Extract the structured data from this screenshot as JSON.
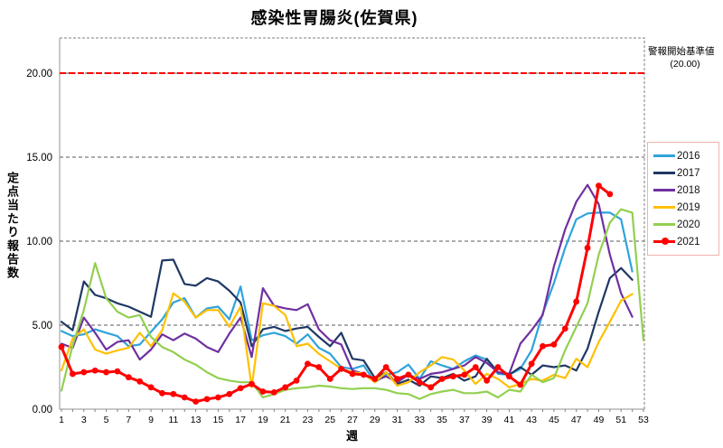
{
  "title": "感染性胃腸炎(佐賀県)",
  "y_axis": {
    "label": "定点当たり報告数"
  },
  "x_axis": {
    "label": "週"
  },
  "alert": {
    "line1": "警報開始基準値",
    "line2": "(20.00)"
  },
  "chart_data": {
    "type": "line",
    "title": "感染性胃腸炎(佐賀県)",
    "xlabel": "週",
    "ylabel": "定点当たり報告数",
    "x_weeks": 53,
    "x_tick_labels": [
      1,
      3,
      5,
      7,
      9,
      11,
      13,
      15,
      17,
      19,
      21,
      23,
      25,
      27,
      29,
      31,
      33,
      35,
      37,
      39,
      41,
      43,
      45,
      47,
      49,
      51,
      53
    ],
    "ylim": [
      0,
      22.1
    ],
    "ytick_values": [
      0,
      5,
      10,
      15,
      20
    ],
    "ytick_labels": [
      "0.00",
      "5.00",
      "10.00",
      "15.00",
      "20.00"
    ],
    "grid": "dashed horizontal at each ytick",
    "legend_position": "right",
    "threshold": {
      "value": 20,
      "label": "警報開始基準値",
      "sublabel": "(20.00)",
      "color": "#FF0000"
    },
    "series": [
      {
        "name": "2016",
        "color": "#2FA3DC",
        "marker": false,
        "values": [
          4.65,
          4.35,
          4.45,
          4.75,
          4.55,
          4.35,
          3.75,
          3.85,
          4.6,
          5.35,
          6.35,
          6.6,
          5.45,
          6.0,
          6.1,
          5.35,
          7.3,
          4.1,
          4.4,
          4.55,
          4.35,
          3.9,
          4.45,
          3.65,
          3.3,
          2.5,
          2.4,
          2.6,
          1.6,
          2.05,
          2.2,
          2.65,
          1.8,
          2.85,
          2.6,
          2.4,
          2.85,
          3.2,
          2.95,
          2.1,
          2.05,
          2.4,
          3.5,
          5.7,
          7.5,
          9.6,
          11.3,
          11.65,
          11.7,
          11.7,
          11.3,
          8.2,
          null
        ]
      },
      {
        "name": "2017",
        "color": "#1F3864",
        "marker": false,
        "values": [
          5.2,
          4.7,
          7.6,
          6.8,
          6.6,
          6.3,
          6.1,
          5.8,
          5.5,
          8.85,
          8.9,
          7.45,
          7.35,
          7.8,
          7.6,
          7.05,
          6.35,
          3.75,
          4.75,
          4.9,
          4.65,
          4.8,
          4.9,
          4.3,
          3.75,
          4.55,
          3.0,
          2.9,
          1.85,
          2.2,
          1.5,
          1.75,
          1.4,
          1.95,
          1.85,
          2.1,
          1.7,
          1.95,
          3.0,
          2.2,
          2.05,
          2.5,
          2.05,
          2.6,
          2.5,
          2.6,
          2.3,
          3.6,
          5.8,
          7.8,
          8.4,
          7.7,
          null
        ]
      },
      {
        "name": "2018",
        "color": "#7030A0",
        "marker": false,
        "values": [
          3.9,
          3.65,
          5.45,
          4.55,
          3.55,
          4.0,
          4.1,
          2.95,
          3.55,
          4.45,
          4.1,
          4.5,
          4.2,
          3.7,
          3.4,
          4.5,
          5.45,
          3.1,
          7.2,
          6.15,
          6.0,
          5.9,
          6.25,
          4.75,
          4.1,
          3.85,
          2.3,
          2.1,
          1.7,
          1.95,
          1.6,
          2.05,
          1.8,
          2.1,
          2.2,
          2.4,
          2.6,
          3.1,
          2.75,
          2.2,
          2.1,
          3.9,
          4.7,
          5.6,
          8.5,
          10.7,
          12.35,
          13.35,
          12.2,
          9.2,
          6.9,
          5.5,
          null
        ]
      },
      {
        "name": "2019",
        "color": "#FFC000",
        "marker": false,
        "values": [
          2.3,
          4.2,
          4.75,
          3.55,
          3.3,
          3.5,
          3.65,
          4.55,
          3.75,
          4.7,
          6.9,
          6.4,
          5.45,
          5.9,
          5.9,
          4.9,
          6.1,
          1.3,
          6.3,
          6.15,
          5.6,
          3.75,
          3.9,
          3.3,
          2.85,
          2.4,
          2.2,
          2.1,
          1.6,
          2.2,
          1.4,
          1.6,
          2.2,
          2.6,
          3.1,
          2.95,
          2.3,
          1.5,
          2.1,
          1.8,
          1.3,
          1.5,
          1.8,
          1.7,
          2.05,
          1.85,
          3.0,
          2.5,
          4.0,
          5.2,
          6.45,
          6.85,
          null
        ]
      },
      {
        "name": "2020",
        "color": "#92D050",
        "marker": false,
        "values": [
          1.1,
          3.8,
          5.9,
          8.7,
          6.6,
          5.8,
          5.45,
          5.6,
          4.3,
          3.7,
          3.4,
          2.95,
          2.65,
          2.2,
          1.85,
          1.7,
          1.6,
          1.6,
          0.7,
          0.9,
          1.15,
          1.25,
          1.3,
          1.4,
          1.35,
          1.25,
          1.2,
          1.25,
          1.25,
          1.15,
          0.95,
          0.9,
          0.6,
          0.9,
          1.05,
          1.15,
          0.95,
          0.95,
          1.05,
          0.7,
          1.15,
          1.05,
          2.05,
          1.6,
          1.85,
          3.5,
          4.9,
          6.3,
          9.2,
          11.1,
          11.9,
          11.7,
          4.1
        ]
      },
      {
        "name": "2021",
        "color": "#FF0000",
        "marker": true,
        "values": [
          3.7,
          2.1,
          2.2,
          2.3,
          2.2,
          2.25,
          1.9,
          1.65,
          1.3,
          0.95,
          0.9,
          0.7,
          0.45,
          0.6,
          0.7,
          0.9,
          1.25,
          1.5,
          1.05,
          1.0,
          1.3,
          1.7,
          2.7,
          2.5,
          1.8,
          2.4,
          2.1,
          2.05,
          1.8,
          2.5,
          1.8,
          2.05,
          1.6,
          1.3,
          1.8,
          1.95,
          2.05,
          2.5,
          1.7,
          2.5,
          1.95,
          1.45,
          2.7,
          3.75,
          3.85,
          4.8,
          6.4,
          9.6,
          13.3,
          12.8,
          null,
          null,
          null
        ]
      }
    ]
  }
}
